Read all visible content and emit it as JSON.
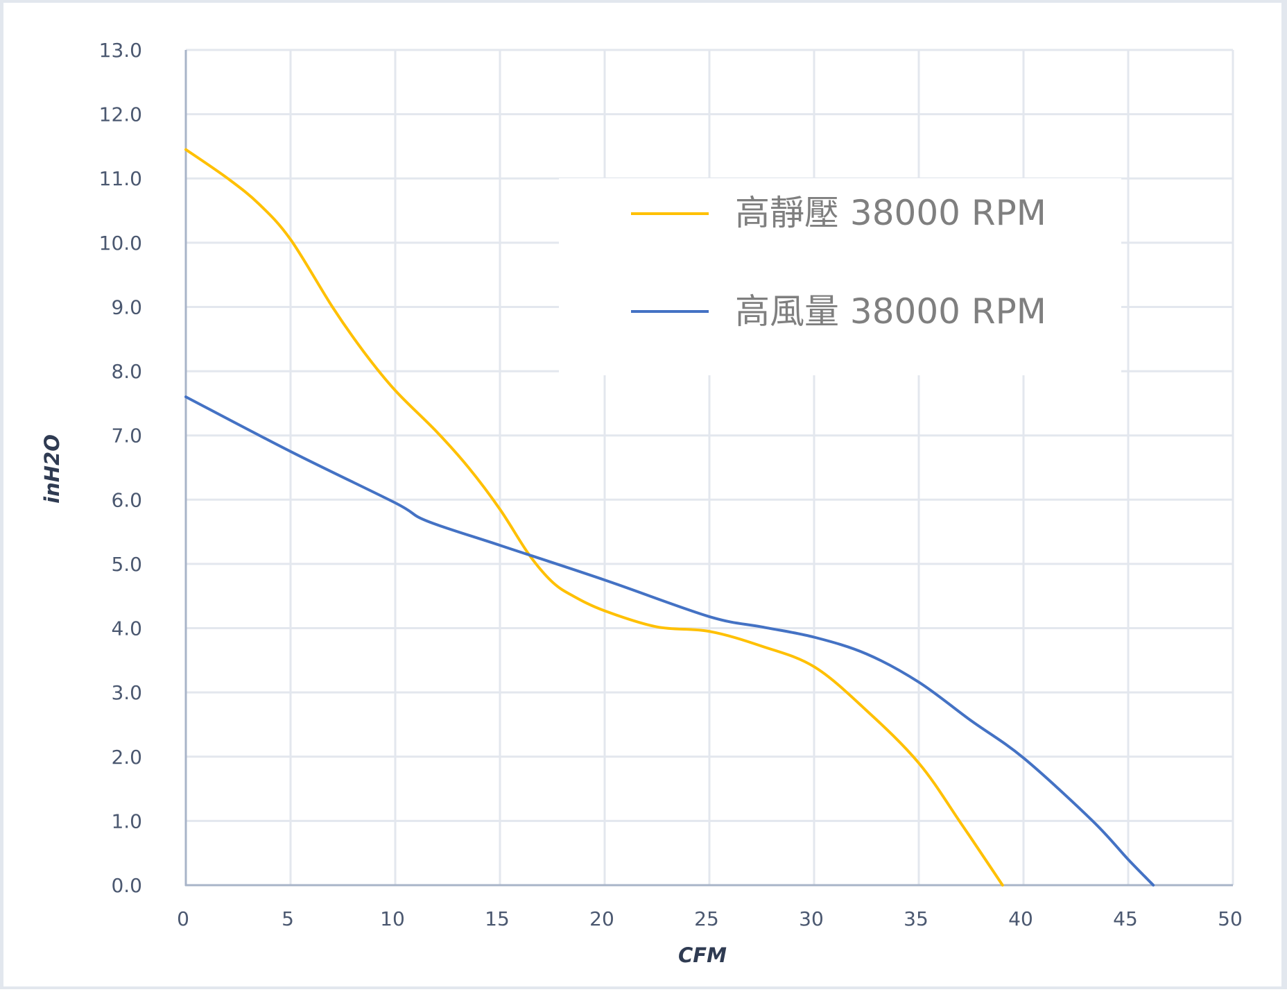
{
  "chart_data": {
    "type": "line",
    "title": "",
    "xlabel": "CFM",
    "ylabel": "inH2O",
    "xlim": [
      0,
      50
    ],
    "ylim": [
      0,
      13
    ],
    "x_ticks": [
      "0",
      "5",
      "10",
      "15",
      "20",
      "25",
      "30",
      "35",
      "40",
      "45",
      "50"
    ],
    "y_ticks": [
      "0.0",
      "1.0",
      "2.0",
      "3.0",
      "4.0",
      "5.0",
      "6.0",
      "7.0",
      "8.0",
      "9.0",
      "10.0",
      "11.0",
      "12.0",
      "13.0"
    ],
    "grid": true,
    "legend_position": "upper-right-inside",
    "series": [
      {
        "name": "高靜壓 38000 RPM",
        "color": "#FFC000",
        "x": [
          0,
          2,
          3.5,
          5,
          7,
          8.5,
          10,
          12,
          13.5,
          15,
          16.4,
          17.5,
          18.5,
          20,
          22.5,
          25,
          27.5,
          30,
          32.5,
          35,
          37,
          39
        ],
        "values": [
          11.45,
          11.0,
          10.6,
          10.05,
          9.0,
          8.3,
          7.7,
          7.05,
          6.5,
          5.85,
          5.14,
          4.72,
          4.5,
          4.27,
          4.02,
          3.95,
          3.72,
          3.4,
          2.72,
          1.9,
          0.97,
          0.0
        ]
      },
      {
        "name": "高風量 38000 RPM",
        "color": "#4472C4",
        "x": [
          0,
          5,
          10,
          11.5,
          15,
          20,
          25,
          27.5,
          30,
          32.5,
          35,
          37.5,
          40,
          43.3,
          45,
          46.2
        ],
        "values": [
          7.6,
          6.75,
          5.95,
          5.67,
          5.29,
          4.75,
          4.18,
          4.02,
          3.86,
          3.6,
          3.16,
          2.56,
          1.98,
          1.0,
          0.4,
          0.0
        ]
      }
    ]
  },
  "legend": {
    "items": [
      {
        "label": "高靜壓 38000 RPM",
        "color": "#FFC000"
      },
      {
        "label": "高風量 38000 RPM",
        "color": "#4472C4"
      }
    ]
  },
  "colors": {
    "grid": "#e3e7ee",
    "axis": "#a8b4c8",
    "tick_text": "#4b5870",
    "legend_text": "#7f7f7f"
  }
}
